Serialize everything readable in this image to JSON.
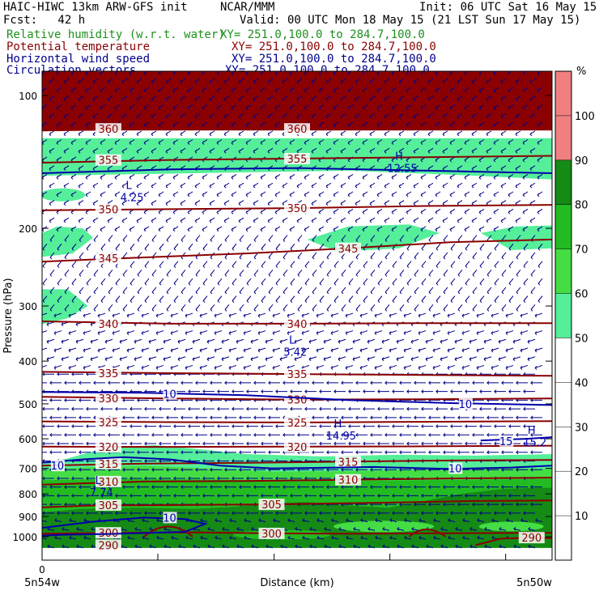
{
  "header": {
    "model": "HAIC-HIWC 13km ARW-GFS init",
    "org": "NCAR/MMM",
    "init": "Init: 06 UTC Sat 16 May 15",
    "fcst": "Fcst:   42 h",
    "valid": "Valid: 00 UTC Mon 18 May 15 (21 LST Sun 17 May 15)",
    "fields": [
      {
        "name": "Relative humidity (w.r.t. water)",
        "xy": "XY= 251.0,100.0 to 284.7,100.0",
        "color": "#1e8f1e"
      },
      {
        "name": "Potential temperature",
        "xy": "XY= 251.0,100.0 to 284.7,100.0",
        "color": "#8b0000"
      },
      {
        "name": "Horizontal wind speed",
        "xy": "XY= 251.0,100.0 to 284.7,100.0",
        "color": "#00008b"
      },
      {
        "name": "Circulation vectors",
        "xy": "XY= 251.0,100.0 to 284.7,100.0",
        "color": "#00008b"
      }
    ]
  },
  "chart_data": {
    "type": "heatmap",
    "xlabel": "Distance (km)",
    "ylabel": "Pressure (hPa)",
    "x_ticks": [
      "0"
    ],
    "x_endpoints": [
      "5n54w",
      "5n50w"
    ],
    "y_ticks": [
      100,
      200,
      300,
      400,
      500,
      600,
      700,
      800,
      900,
      1000
    ],
    "ylim": [
      1050,
      70
    ],
    "y_scale": "log",
    "colorbar": {
      "unit": "%",
      "levels": [
        10,
        20,
        30,
        40,
        50,
        60,
        70,
        80,
        90,
        100
      ],
      "band_colors": [
        "#ffffff",
        "#ffffff",
        "#ffffff",
        "#ffffff",
        "#ffffff",
        "#55ee99",
        "#44dd44",
        "#22bb22",
        "#158a15",
        "#f08080"
      ]
    },
    "rh_layers": [
      {
        "level": 50,
        "color": "#55ee99"
      },
      {
        "level": 60,
        "color": "#44dd44"
      },
      {
        "level": 70,
        "color": "#22bb22"
      },
      {
        "level": 80,
        "color": "#158a15"
      }
    ],
    "theta_contours": [
      {
        "value": 300,
        "label": "300"
      },
      {
        "value": 305,
        "label": "305"
      },
      {
        "value": 310,
        "label": "310"
      },
      {
        "value": 315,
        "label": "315"
      },
      {
        "value": 320,
        "label": "320"
      },
      {
        "value": 325,
        "label": "325"
      },
      {
        "value": 330,
        "label": "330"
      },
      {
        "value": 335,
        "label": "335"
      },
      {
        "value": 340,
        "label": "340"
      },
      {
        "value": 345,
        "label": "345"
      },
      {
        "value": 350,
        "label": "350"
      },
      {
        "value": 355,
        "label": "355"
      },
      {
        "value": 360,
        "label": "360"
      },
      {
        "value": 290,
        "label": "290"
      }
    ],
    "wind_contours": [
      {
        "value": 10,
        "label": "10"
      },
      {
        "value": 15,
        "label": "15"
      }
    ],
    "extrema": [
      {
        "type": "H",
        "value": "12.55"
      },
      {
        "type": "L",
        "value": "4.25"
      },
      {
        "type": "L",
        "value": "5.42"
      },
      {
        "type": "H",
        "value": "14.95"
      },
      {
        "type": "H",
        "value": "15.2"
      },
      {
        "type": "L",
        "value": "7.74"
      }
    ]
  }
}
